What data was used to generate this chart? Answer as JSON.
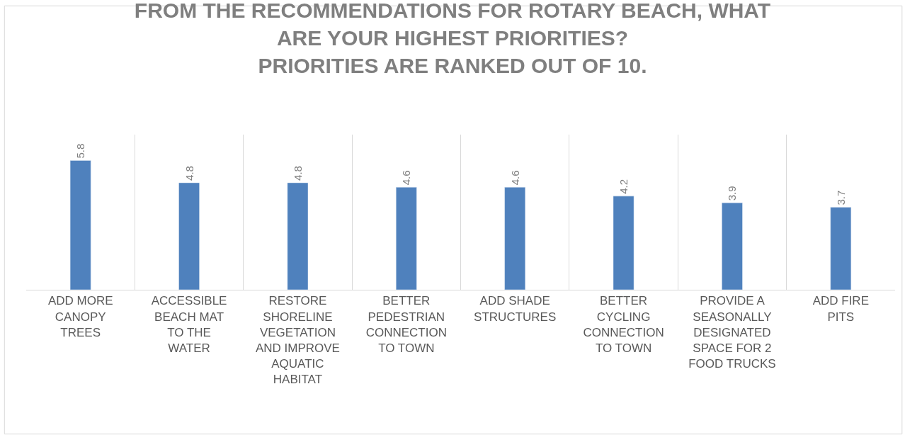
{
  "chart_data": {
    "type": "bar",
    "title": "FROM THE RECOMMENDATIONS FOR ROTARY BEACH, WHAT ARE YOUR HIGHEST PRIORITIES?",
    "subtitle": "PRIORITIES ARE RANKED OUT OF 10.",
    "categories": [
      "ADD MORE CANOPY TREES",
      "ACCESSIBLE BEACH MAT TO THE WATER",
      "RESTORE SHORELINE VEGETATION AND IMPROVE AQUATIC HABITAT",
      "BETTER PEDESTRIAN CONNECTION TO TOWN",
      "ADD SHADE STRUCTURES",
      "BETTER CYCLING CONNECTION TO TOWN",
      "PROVIDE A SEASONALLY DESIGNATED SPACE FOR 2 FOOD TRUCKS",
      "ADD FIRE PITS"
    ],
    "values": [
      5.8,
      4.8,
      4.8,
      4.6,
      4.6,
      4.2,
      3.9,
      3.7
    ],
    "color": "#4f81bd",
    "data_labels": true,
    "grid": "x",
    "legend": false
  }
}
